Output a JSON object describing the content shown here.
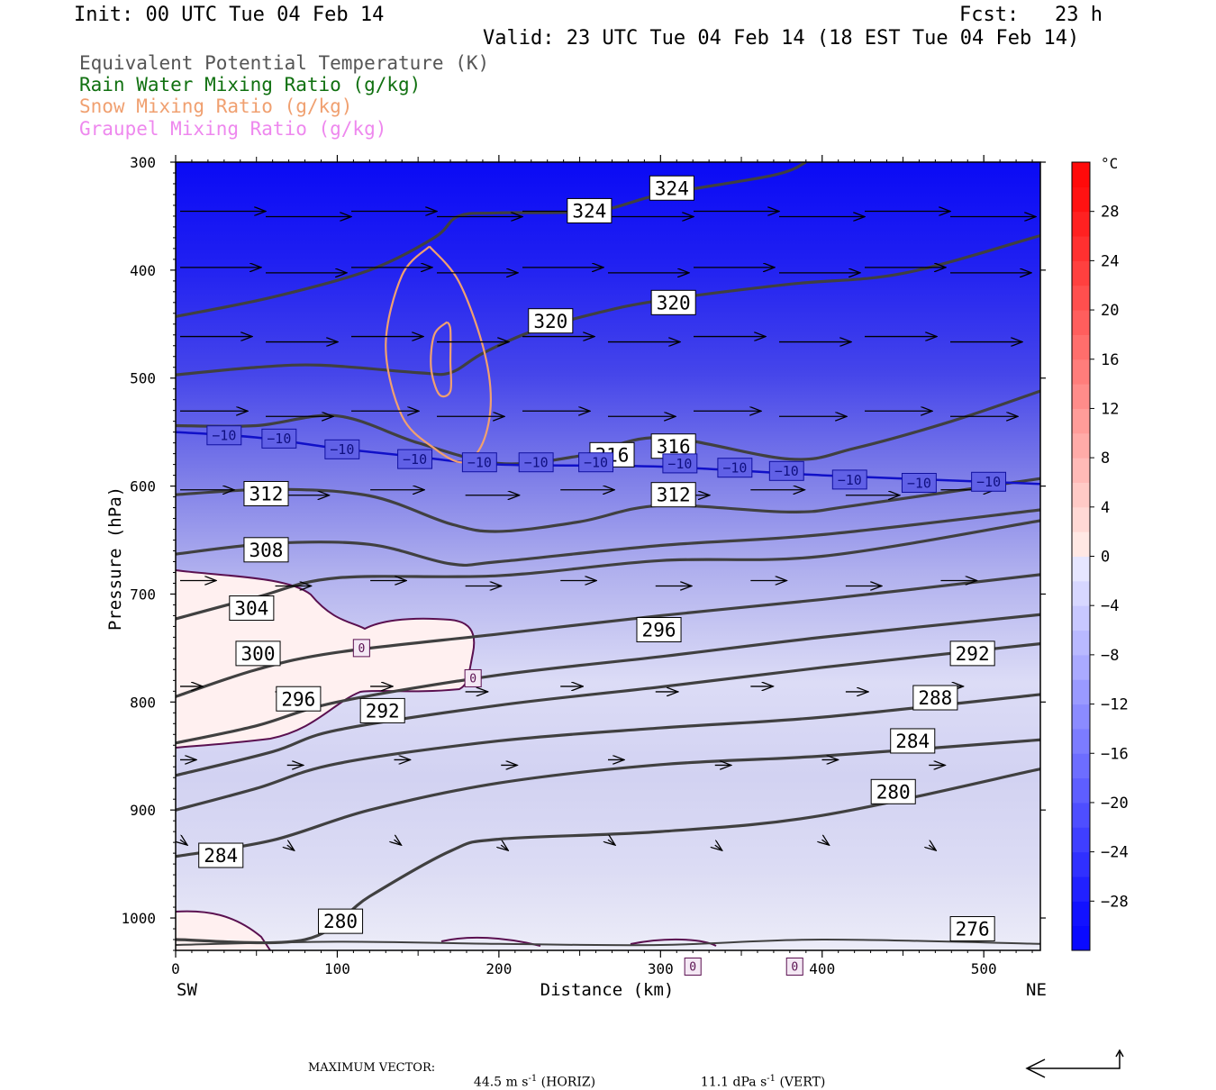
{
  "header": {
    "init": "Init: 00 UTC Tue 04 Feb 14",
    "fcst": "Fcst:   23 h",
    "valid": "Valid: 23 UTC Tue 04 Feb 14 (18 EST Tue 04 Feb 14)"
  },
  "legend": [
    {
      "label": "Equivalent Potential Temperature (K)",
      "color": "#555555"
    },
    {
      "label": "Rain Water Mixing Ratio (g/kg)",
      "color": "#107010"
    },
    {
      "label": "Snow Mixing Ratio (g/kg)",
      "color": "#f0a070"
    },
    {
      "label": "Graupel Mixing Ratio (g/kg)",
      "color": "#ee88ee"
    }
  ],
  "footer": {
    "max_vector_label": "MAXIMUM VECTOR:",
    "horiz_value": "44.5 m s",
    "horiz_unit": "(HORIZ)",
    "vert_value": "11.1 dPa s",
    "vert_unit": "(VERT)",
    "exponent": "-1"
  },
  "chart_data": {
    "type": "cross-section",
    "xlabel": "Distance (km)",
    "ylabel": "Pressure (hPa)",
    "xlim": [
      0,
      535
    ],
    "ylim": [
      1030,
      300
    ],
    "x_ticks": [
      0,
      100,
      200,
      300,
      400,
      500
    ],
    "y_ticks": [
      300,
      400,
      500,
      600,
      700,
      800,
      900,
      1000
    ],
    "x_end_labels": {
      "left": "SW",
      "right": "NE"
    },
    "colorbar": {
      "unit": "°C",
      "tick_labels": [
        "28",
        "24",
        "20",
        "16",
        "12",
        "8",
        "4",
        "0",
        "−4",
        "−8",
        "−12",
        "−16",
        "−20",
        "−24",
        "−28"
      ],
      "tick_values": [
        28,
        24,
        20,
        16,
        12,
        8,
        4,
        0,
        -4,
        -8,
        -12,
        -16,
        -20,
        -24,
        -28
      ],
      "range": [
        -32,
        32
      ],
      "interval": 2
    },
    "theta_e_contours": [
      {
        "level": 276,
        "label": "276",
        "points": [
          [
            0,
            1025
          ],
          [
            100,
            1022
          ],
          [
            200,
            1024
          ],
          [
            300,
            1025
          ],
          [
            400,
            1020
          ],
          [
            535,
            1024
          ]
        ],
        "labels": [
          [
            493,
            1010
          ]
        ]
      },
      {
        "level": 280,
        "label": "280",
        "points": [
          [
            0,
            1020
          ],
          [
            80,
            1020
          ],
          [
            120,
            980
          ],
          [
            170,
            938
          ],
          [
            200,
            927
          ],
          [
            300,
            920
          ],
          [
            400,
            905
          ],
          [
            535,
            862
          ]
        ],
        "labels": [
          [
            102,
            1003
          ],
          [
            444,
            883
          ]
        ]
      },
      {
        "level": 284,
        "label": "284",
        "points": [
          [
            0,
            943
          ],
          [
            60,
            928
          ],
          [
            120,
            900
          ],
          [
            200,
            875
          ],
          [
            300,
            858
          ],
          [
            400,
            850
          ],
          [
            535,
            835
          ]
        ],
        "labels": [
          [
            28,
            942
          ],
          [
            456,
            836
          ]
        ]
      },
      {
        "level": 288,
        "label": "288",
        "points": [
          [
            0,
            900
          ],
          [
            50,
            880
          ],
          [
            100,
            857
          ],
          [
            200,
            836
          ],
          [
            300,
            824
          ],
          [
            400,
            814
          ],
          [
            535,
            793
          ]
        ],
        "labels": [
          [
            470,
            796
          ]
        ]
      },
      {
        "level": 292,
        "label": "292",
        "points": [
          [
            0,
            868
          ],
          [
            60,
            846
          ],
          [
            100,
            826
          ],
          [
            200,
            803
          ],
          [
            300,
            786
          ],
          [
            400,
            768
          ],
          [
            535,
            746
          ]
        ],
        "labels": [
          [
            128,
            808
          ],
          [
            493,
            755
          ]
        ]
      },
      {
        "level": 296,
        "label": "296",
        "points": [
          [
            0,
            838
          ],
          [
            50,
            822
          ],
          [
            100,
            800
          ],
          [
            200,
            775
          ],
          [
            300,
            758
          ],
          [
            400,
            740
          ],
          [
            535,
            719
          ]
        ],
        "labels": [
          [
            76,
            797
          ],
          [
            299,
            733
          ]
        ]
      },
      {
        "level": 300,
        "label": "300",
        "points": [
          [
            0,
            795
          ],
          [
            50,
            770
          ],
          [
            100,
            754
          ],
          [
            200,
            737
          ],
          [
            300,
            720
          ],
          [
            400,
            705
          ],
          [
            535,
            682
          ]
        ],
        "labels": [
          [
            51,
            755
          ]
        ]
      },
      {
        "level": 304,
        "label": "304",
        "points": [
          [
            0,
            723
          ],
          [
            50,
            703
          ],
          [
            100,
            685
          ],
          [
            200,
            683
          ],
          [
            300,
            669
          ],
          [
            400,
            665
          ],
          [
            535,
            632
          ]
        ],
        "labels": [
          [
            47,
            713
          ]
        ]
      },
      {
        "level": 308,
        "label": "308",
        "points": [
          [
            0,
            663
          ],
          [
            60,
            653
          ],
          [
            120,
            654
          ],
          [
            170,
            672
          ],
          [
            200,
            670
          ],
          [
            300,
            655
          ],
          [
            400,
            645
          ],
          [
            535,
            622
          ]
        ],
        "labels": [
          [
            56,
            659
          ]
        ]
      },
      {
        "level": 312,
        "label": "312",
        "points": [
          [
            0,
            608
          ],
          [
            60,
            603
          ],
          [
            120,
            609
          ],
          [
            170,
            635
          ],
          [
            200,
            642
          ],
          [
            250,
            633
          ],
          [
            300,
            618
          ],
          [
            380,
            624
          ],
          [
            420,
            618
          ],
          [
            535,
            593
          ]
        ],
        "labels": [
          [
            56,
            607
          ],
          [
            308,
            608
          ]
        ]
      },
      {
        "level": 316,
        "label": "316",
        "points": [
          [
            0,
            544
          ],
          [
            50,
            544
          ],
          [
            100,
            535
          ],
          [
            150,
            560
          ],
          [
            200,
            579
          ],
          [
            250,
            572
          ],
          [
            300,
            555
          ],
          [
            380,
            575
          ],
          [
            420,
            565
          ],
          [
            480,
            540
          ],
          [
            535,
            512
          ]
        ],
        "labels": [
          [
            270,
            571
          ],
          [
            308,
            563
          ]
        ]
      },
      {
        "level": 320,
        "label": "320",
        "points": [
          [
            0,
            497
          ],
          [
            50,
            490
          ],
          [
            90,
            488
          ],
          [
            150,
            495
          ],
          [
            170,
            495
          ],
          [
            190,
            477
          ],
          [
            220,
            457
          ],
          [
            260,
            440
          ],
          [
            300,
            428
          ],
          [
            380,
            413
          ],
          [
            450,
            403
          ],
          [
            535,
            368
          ]
        ],
        "labels": [
          [
            232,
            447
          ],
          [
            308,
            430
          ]
        ]
      },
      {
        "level": 324,
        "label": "324",
        "points": [
          [
            0,
            443
          ],
          [
            60,
            425
          ],
          [
            120,
            400
          ],
          [
            160,
            370
          ],
          [
            175,
            350
          ],
          [
            200,
            347
          ],
          [
            260,
            345
          ],
          [
            300,
            330
          ],
          [
            370,
            312
          ],
          [
            390,
            300
          ]
        ],
        "labels": [
          [
            256,
            345
          ],
          [
            307,
            324
          ]
        ]
      }
    ],
    "temperature_minus10": {
      "label": "−10",
      "points": [
        [
          0,
          550
        ],
        [
          50,
          555
        ],
        [
          100,
          565
        ],
        [
          150,
          573
        ],
        [
          200,
          580
        ],
        [
          300,
          582
        ],
        [
          400,
          590
        ],
        [
          535,
          598
        ]
      ],
      "labels": [
        [
          30,
          553
        ],
        [
          64,
          556
        ],
        [
          103,
          566
        ],
        [
          148,
          575
        ],
        [
          188,
          578
        ],
        [
          223,
          578
        ],
        [
          260,
          578
        ],
        [
          312,
          579
        ],
        [
          346,
          583
        ],
        [
          378,
          586
        ],
        [
          417,
          594
        ],
        [
          460,
          597
        ],
        [
          503,
          596
        ]
      ]
    },
    "temperature_zero": {
      "label": "0",
      "labels": [
        [
          115,
          750
        ],
        [
          184,
          778
        ],
        [
          320,
          1045
        ],
        [
          383,
          1045
        ]
      ]
    },
    "snow_contours": [
      {
        "level": "outer",
        "points": [
          [
            157,
            378
          ],
          [
            140,
            405
          ],
          [
            130,
            470
          ],
          [
            140,
            535
          ],
          [
            160,
            565
          ],
          [
            178,
            578
          ],
          [
            190,
            560
          ],
          [
            195,
            520
          ],
          [
            190,
            470
          ],
          [
            175,
            410
          ],
          [
            157,
            378
          ]
        ]
      },
      {
        "level": "inner",
        "points": [
          [
            168,
            448
          ],
          [
            160,
            460
          ],
          [
            158,
            490
          ],
          [
            163,
            515
          ],
          [
            170,
            512
          ],
          [
            170,
            485
          ],
          [
            170,
            455
          ],
          [
            168,
            448
          ]
        ]
      }
    ]
  }
}
